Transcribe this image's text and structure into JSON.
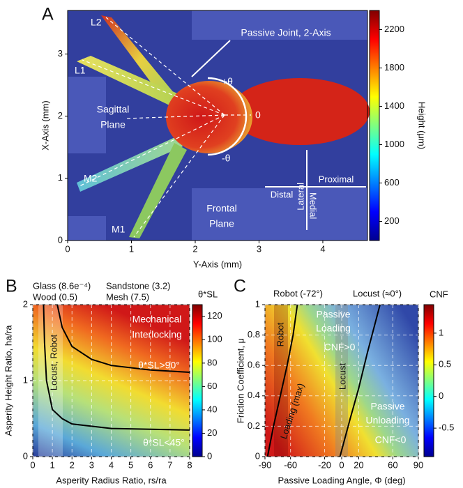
{
  "chart_data": [
    {
      "type": "image",
      "panel": "A",
      "xlabel": "Y-Axis (mm)",
      "ylabel": "X-Axis (mm)",
      "xlim": [
        0,
        4.7
      ],
      "ylim": [
        0,
        3.7
      ],
      "xticks": [
        0,
        1,
        2,
        3,
        4
      ],
      "yticks": [
        0,
        1,
        2,
        3
      ],
      "grid": false,
      "colorbar": {
        "label": "Height (μm)",
        "lim": [
          0,
          2400
        ],
        "ticks": [
          200,
          600,
          1000,
          1400,
          1800,
          2200
        ],
        "colormap": "jet"
      },
      "annotations": {
        "legs": [
          "L2",
          "L1",
          "M2",
          "M1"
        ],
        "joint": "Passive Joint, 2-Axis",
        "sagittal": [
          "Sagittal",
          "Plane"
        ],
        "angles": [
          "+θ",
          "0",
          "-θ"
        ],
        "directions": [
          "Lateral",
          "Medial",
          "Distal",
          "Proximal"
        ],
        "frontal": [
          "Frontal",
          "Plane"
        ]
      }
    },
    {
      "type": "heatmap",
      "panel": "B",
      "xlabel": "Asperity Radius Ratio, rs/ra",
      "ylabel": "Asperity Height Ratio, ha/ra",
      "xlim": [
        0,
        8
      ],
      "ylim": [
        0,
        2
      ],
      "xticks": [
        0,
        1,
        2,
        3,
        4,
        5,
        6,
        7,
        8
      ],
      "yticks": [
        0,
        1,
        2
      ],
      "grid": true,
      "colorbar": {
        "label": "θ*SL",
        "lim": [
          0,
          130
        ],
        "ticks": [
          0,
          20,
          40,
          60,
          80,
          100,
          120
        ],
        "colormap": "jet"
      },
      "curves": [
        {
          "color": "#000000",
          "x": [
            1.25,
            1.5,
            2,
            3,
            4,
            6,
            8
          ],
          "values": [
            2,
            1.7,
            1.45,
            1.28,
            1.2,
            1.14,
            1.11
          ]
        },
        {
          "color": "#000000",
          "x": [
            0.55,
            0.6,
            0.7,
            1,
            1.5,
            2,
            4,
            8
          ],
          "values": [
            2,
            1.5,
            1,
            0.62,
            0.5,
            0.43,
            0.37,
            0.35
          ]
        }
      ],
      "annotations": {
        "materials": [
          "Glass (8.6e⁻⁴)",
          "Wood (0.5)",
          "Sandstone (3.2)",
          "Mesh (7.5)"
        ],
        "interlocking": [
          "Mechanical",
          "Interlocking"
        ],
        "above": "θ*SL>90°",
        "band": "Locust, Robot",
        "below": "θ*SL<45°"
      }
    },
    {
      "type": "heatmap",
      "panel": "C",
      "xlabel": "Passive Loading Angle, Φ (deg)",
      "ylabel": "Friction Coefficient, μ",
      "xlim": [
        -90,
        90
      ],
      "ylim": [
        0,
        1
      ],
      "xticks": [
        -90,
        -60,
        -20,
        0,
        20,
        60,
        90
      ],
      "yticks": [
        0,
        0.2,
        0.4,
        0.6,
        0.8,
        1
      ],
      "grid": true,
      "colorbar": {
        "label": "CNF",
        "lim": [
          -0.95,
          1.45
        ],
        "ticks": [
          -0.5,
          0,
          0.5,
          1
        ],
        "colormap": "jet"
      },
      "curves": [
        {
          "color": "#000000",
          "x": [
            -87,
            -80,
            -72,
            -64,
            -57,
            -52
          ],
          "values": [
            0,
            0.2,
            0.4,
            0.6,
            0.8,
            1
          ]
        },
        {
          "color": "#000000",
          "x": [
            -2,
            10,
            20,
            30,
            45
          ],
          "values": [
            0,
            0.25,
            0.45,
            0.68,
            1
          ]
        }
      ],
      "annotations": {
        "robot": "Robot (-72°)",
        "locust": "Locust (≈0°)",
        "loading": [
          "Passive",
          "Loading"
        ],
        "positive": "CNF>0",
        "robot_band": "Robot",
        "max": "Loading (max)",
        "locust_band": "Locust",
        "unloading": [
          "Passive",
          "Unloading"
        ],
        "negative": "CNF<0"
      }
    }
  ]
}
